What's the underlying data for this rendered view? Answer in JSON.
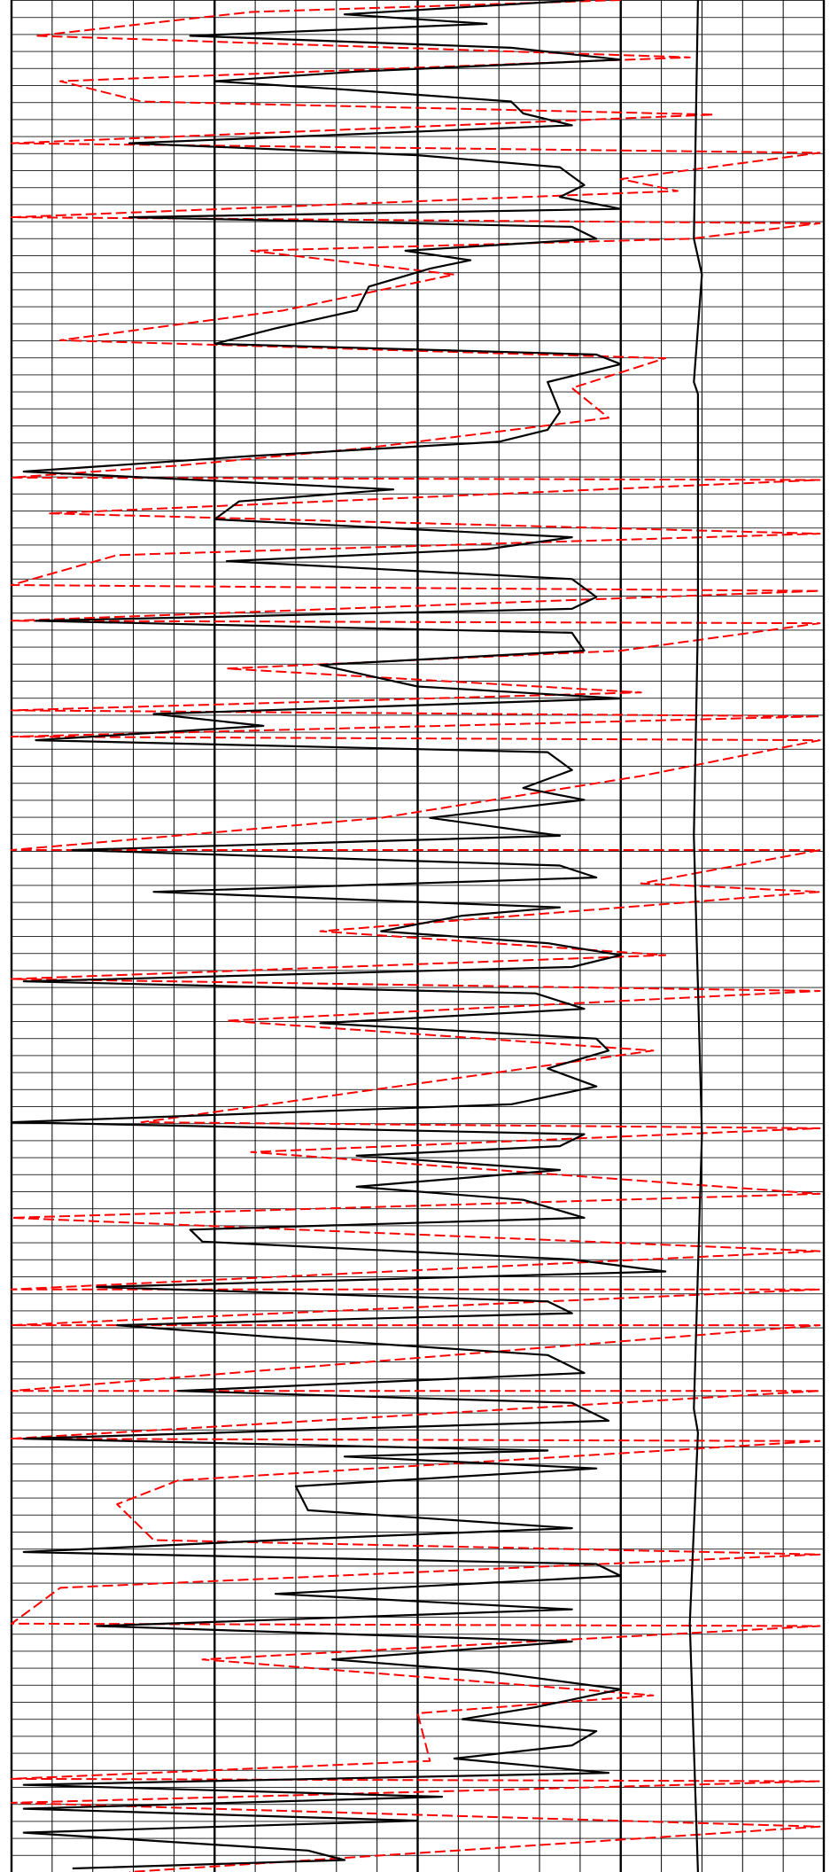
{
  "chart_data": {
    "type": "line",
    "orientation": "vertical",
    "xlim": [
      0,
      20
    ],
    "xticks": [
      0,
      1,
      2,
      3,
      4,
      5,
      6,
      7,
      8,
      9,
      10,
      11,
      12,
      13,
      14,
      15,
      16,
      17,
      18,
      19,
      20
    ],
    "ylim": [
      0,
      1568
    ],
    "grid": true,
    "series": [
      {
        "color": "#ff0000",
        "dashed": true,
        "depths": [
          0,
          10,
          30,
          48,
          68,
          85,
          96,
          120,
          128,
          150,
          160,
          182,
          187,
          200,
          210,
          230,
          260,
          285,
          300,
          325,
          350,
          375,
          390,
          400,
          402,
          430,
          447,
          465,
          490,
          495,
          520,
          522,
          545,
          560,
          580,
          595,
          600,
          617,
          620,
          650,
          685,
          712,
          712,
          740,
          747,
          780,
          800,
          820,
          830,
          855,
          880,
          940,
          945,
          965,
          1000,
          1020,
          1048,
          1080,
          1080,
          1110,
          1110,
          1165,
          1165,
          1205,
          1207,
          1240,
          1260,
          1290,
          1302,
          1330,
          1360,
          1362,
          1390,
          1420,
          1435,
          1475,
          1490,
          1492,
          1510,
          1530,
          1568
        ],
        "values": [
          15.0,
          5.9,
          0.6,
          16.7,
          1.2,
          3.2,
          17.3,
          0.0,
          19.9,
          15.0,
          16.4,
          0.0,
          19.9,
          16.7,
          5.9,
          10.9,
          6.7,
          1.2,
          16.1,
          13.8,
          14.7,
          8.8,
          4.1,
          0.0,
          19.9,
          0.9,
          19.9,
          2.6,
          0.0,
          19.9,
          0.0,
          19.9,
          15.0,
          5.3,
          15.5,
          0.0,
          19.9,
          0.0,
          19.9,
          15.5,
          9.1,
          0.0,
          19.9,
          15.5,
          19.9,
          7.6,
          16.1,
          0.0,
          19.9,
          5.3,
          15.8,
          3.2,
          19.9,
          5.9,
          19.9,
          0.0,
          19.9,
          0.0,
          19.9,
          0.0,
          19.9,
          0.0,
          19.9,
          0.0,
          19.9,
          4.1,
          2.6,
          3.5,
          19.9,
          1.2,
          0.0,
          19.9,
          4.7,
          15.8,
          10.0,
          10.3,
          0.0,
          19.9,
          0.0,
          19.9,
          2.9
        ]
      },
      {
        "color": "#000000",
        "dashed": false,
        "depths": [
          0,
          12,
          20,
          30,
          40,
          50,
          60,
          68,
          75,
          85,
          95,
          105,
          120,
          130,
          140,
          155,
          165,
          175,
          182,
          190,
          200,
          210,
          218,
          225,
          240,
          260,
          275,
          288,
          297,
          305,
          320,
          345,
          360,
          370,
          382,
          395,
          410,
          420,
          435,
          450,
          460,
          470,
          485,
          500,
          510,
          520,
          530,
          545,
          557,
          575,
          585,
          598,
          608,
          620,
          630,
          645,
          660,
          670,
          685,
          700,
          712,
          725,
          735,
          747,
          760,
          767,
          780,
          790,
          800,
          810,
          822,
          832,
          845,
          857,
          870,
          880,
          895,
          910,
          925,
          940,
          950,
          960,
          968,
          980,
          994,
          1005,
          1020,
          1030,
          1040,
          1055,
          1065,
          1078,
          1090,
          1100,
          1110,
          1120,
          1135,
          1150,
          1165,
          1175,
          1190,
          1205,
          1215,
          1220,
          1230,
          1245,
          1265,
          1280,
          1290,
          1300,
          1310,
          1320,
          1335,
          1348,
          1362,
          1375,
          1390,
          1400,
          1415,
          1430,
          1440,
          1450,
          1462,
          1473,
          1485,
          1495,
          1505,
          1515,
          1525,
          1535,
          1550,
          1558,
          1565
        ],
        "values": [
          14.1,
          8.2,
          11.7,
          4.4,
          12.3,
          15.0,
          8.5,
          5.0,
          8.2,
          12.3,
          12.6,
          13.8,
          2.9,
          10.0,
          13.5,
          14.1,
          13.5,
          15.0,
          2.9,
          13.8,
          14.4,
          9.7,
          11.3,
          10.3,
          8.8,
          8.5,
          6.5,
          5.0,
          14.4,
          15.0,
          13.2,
          13.5,
          13.2,
          12.0,
          5.9,
          0.3,
          9.4,
          5.6,
          5.0,
          13.8,
          11.7,
          5.3,
          13.8,
          14.4,
          13.8,
          0.6,
          13.8,
          14.1,
          7.6,
          10.0,
          15.0,
          3.5,
          6.2,
          0.6,
          13.2,
          13.8,
          12.6,
          14.1,
          10.3,
          13.5,
          1.5,
          13.5,
          14.4,
          3.5,
          13.5,
          11.1,
          9.1,
          13.2,
          15.0,
          13.8,
          0.3,
          12.9,
          14.1,
          7.6,
          14.4,
          14.7,
          13.2,
          14.4,
          12.3,
          0.0,
          14.1,
          13.5,
          8.5,
          13.5,
          8.5,
          12.6,
          14.1,
          4.4,
          4.7,
          13.8,
          16.1,
          2.1,
          13.2,
          13.8,
          2.6,
          6.5,
          13.2,
          14.1,
          4.1,
          13.8,
          14.7,
          0.3,
          13.2,
          8.2,
          14.4,
          7.0,
          7.3,
          13.8,
          6.5,
          0.3,
          14.4,
          15.0,
          6.5,
          13.8,
          2.1,
          13.8,
          7.9,
          11.7,
          15.0,
          12.9,
          11.1,
          14.4,
          13.8,
          10.9,
          14.7,
          0.3,
          10.6,
          0.3,
          10.0,
          0.3,
          7.3,
          8.2,
          1.5
        ]
      },
      {
        "color": "#000000",
        "dashed": false,
        "depths": [
          0,
          200,
          230,
          320,
          330,
          520,
          700,
          950,
          1180,
          1200,
          1360,
          1568
        ],
        "values": [
          16.9,
          16.8,
          17.0,
          16.8,
          16.9,
          16.9,
          16.8,
          17.0,
          16.8,
          16.9,
          16.7,
          16.9
        ]
      }
    ]
  }
}
